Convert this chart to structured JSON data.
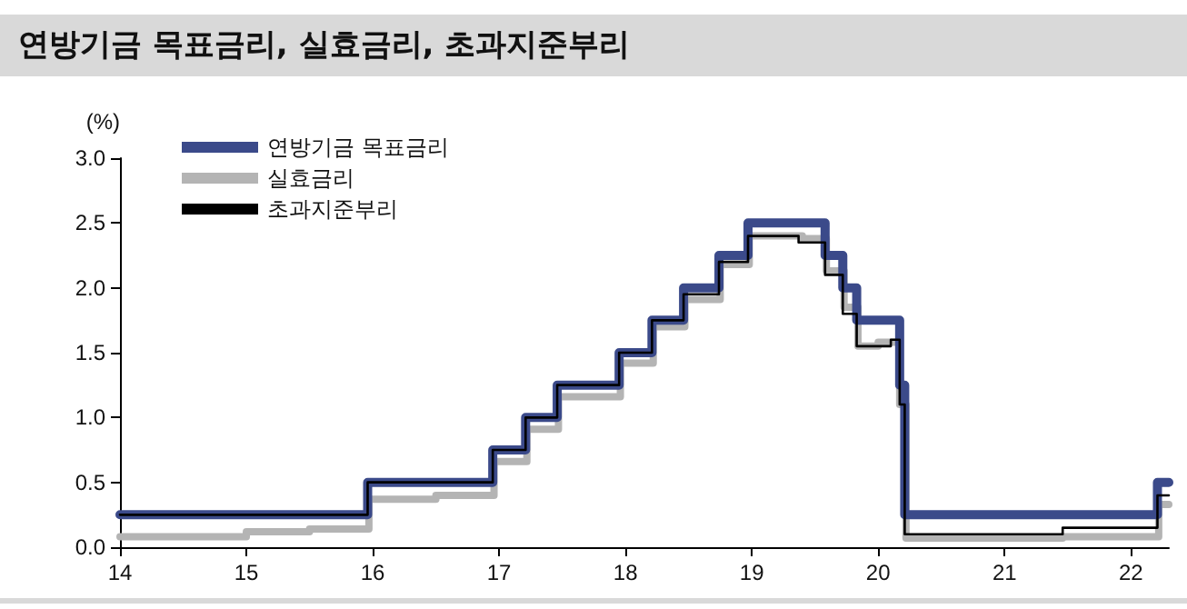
{
  "chart_data": {
    "type": "step",
    "title": "연방기금 목표금리, 실효금리, 초과지준부리",
    "ylabel": "(%)",
    "xlim": [
      14,
      22.3
    ],
    "xticks": [
      14,
      15,
      16,
      17,
      18,
      19,
      20,
      21,
      22
    ],
    "ylim": [
      0,
      3
    ],
    "yticks": [
      {
        "value": 0,
        "label": "0.0"
      },
      {
        "value": 0.5,
        "label": "0.5"
      },
      {
        "value": 1,
        "label": "1.0"
      },
      {
        "value": 1.5,
        "label": "1.5"
      },
      {
        "value": 2,
        "label": "2.0"
      },
      {
        "value": 2.5,
        "label": "2.5"
      },
      {
        "value": 3,
        "label": "3.0"
      }
    ],
    "grid": false,
    "legend": "top left",
    "marker": "none",
    "line_style": "solid",
    "series": [
      {
        "name": "연방기금 목표금리",
        "color": "#3b4a8a",
        "x": [
          14,
          15.96,
          16.95,
          17.21,
          17.46,
          17.95,
          18.21,
          18.46,
          18.74,
          18.97,
          19.58,
          19.72,
          19.83,
          20.17,
          20.21,
          22.21,
          22.3
        ],
        "values": [
          0.25,
          0.5,
          0.75,
          1.0,
          1.25,
          1.5,
          1.75,
          2.0,
          2.25,
          2.5,
          2.25,
          2.0,
          1.75,
          1.25,
          0.25,
          0.5,
          0.5
        ]
      },
      {
        "name": "실효금리",
        "color": "#b4b4b4",
        "x": [
          14,
          15,
          15.5,
          15.97,
          16.5,
          16.96,
          17.22,
          17.47,
          17.96,
          18.22,
          18.47,
          18.75,
          18.98,
          19.4,
          19.59,
          19.73,
          19.84,
          20.0,
          20.17,
          20.22,
          21.46,
          22.22,
          22.3
        ],
        "values": [
          0.08,
          0.12,
          0.14,
          0.37,
          0.4,
          0.66,
          0.91,
          1.16,
          1.42,
          1.7,
          1.91,
          2.18,
          2.4,
          2.38,
          2.13,
          1.85,
          1.55,
          1.58,
          1.1,
          0.07,
          0.08,
          0.33,
          0.33
        ]
      },
      {
        "name": "초과지준부리",
        "color": "#000000",
        "x": [
          14,
          15.96,
          16.95,
          17.21,
          17.46,
          17.95,
          18.21,
          18.46,
          18.74,
          18.97,
          19.37,
          19.58,
          19.72,
          19.83,
          20.1,
          20.17,
          20.21,
          21.46,
          22.21,
          22.3
        ],
        "values": [
          0.25,
          0.5,
          0.75,
          1.0,
          1.25,
          1.5,
          1.75,
          1.95,
          2.2,
          2.4,
          2.35,
          2.1,
          1.8,
          1.55,
          1.6,
          1.1,
          0.1,
          0.15,
          0.4,
          0.4
        ]
      }
    ]
  }
}
